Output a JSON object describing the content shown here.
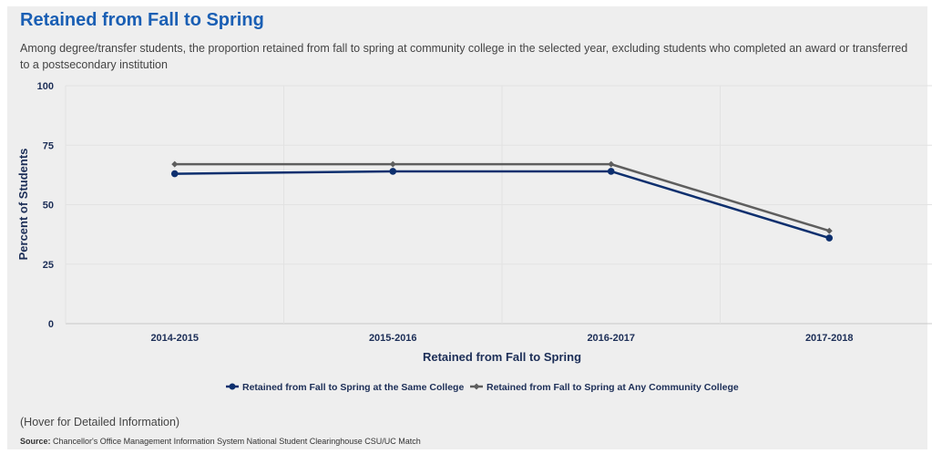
{
  "title": "Retained from Fall to Spring",
  "subtitle": "Among degree/transfer students, the proportion retained from fall to spring at community college in the selected year, excluding students who completed an award or transferred to a postsecondary institution",
  "hover_note": "(Hover for Detailed Information)",
  "source_label": "Source:",
  "source_text": "Chancellor's Office Management Information System National Student Clearinghouse CSU/UC Match",
  "colors": {
    "series1": "#0d2f6e",
    "series2": "#5e5e5e",
    "accent": "#1a5fb4"
  },
  "chart_data": {
    "type": "line",
    "xlabel": "Retained from Fall to Spring",
    "ylabel": "Percent of Students",
    "ylim": [
      0,
      100
    ],
    "yticks": [
      0,
      25,
      50,
      75,
      100
    ],
    "categories": [
      "2014-2015",
      "2015-2016",
      "2016-2017",
      "2017-2018"
    ],
    "grid": true,
    "legend_position": "bottom-center",
    "series": [
      {
        "name": "Retained from Fall to Spring at the Same College",
        "values": [
          63,
          64,
          64,
          36
        ],
        "marker": "circle"
      },
      {
        "name": "Retained from Fall to Spring at Any Community College",
        "values": [
          67,
          67,
          67,
          39
        ],
        "marker": "diamond"
      }
    ]
  }
}
